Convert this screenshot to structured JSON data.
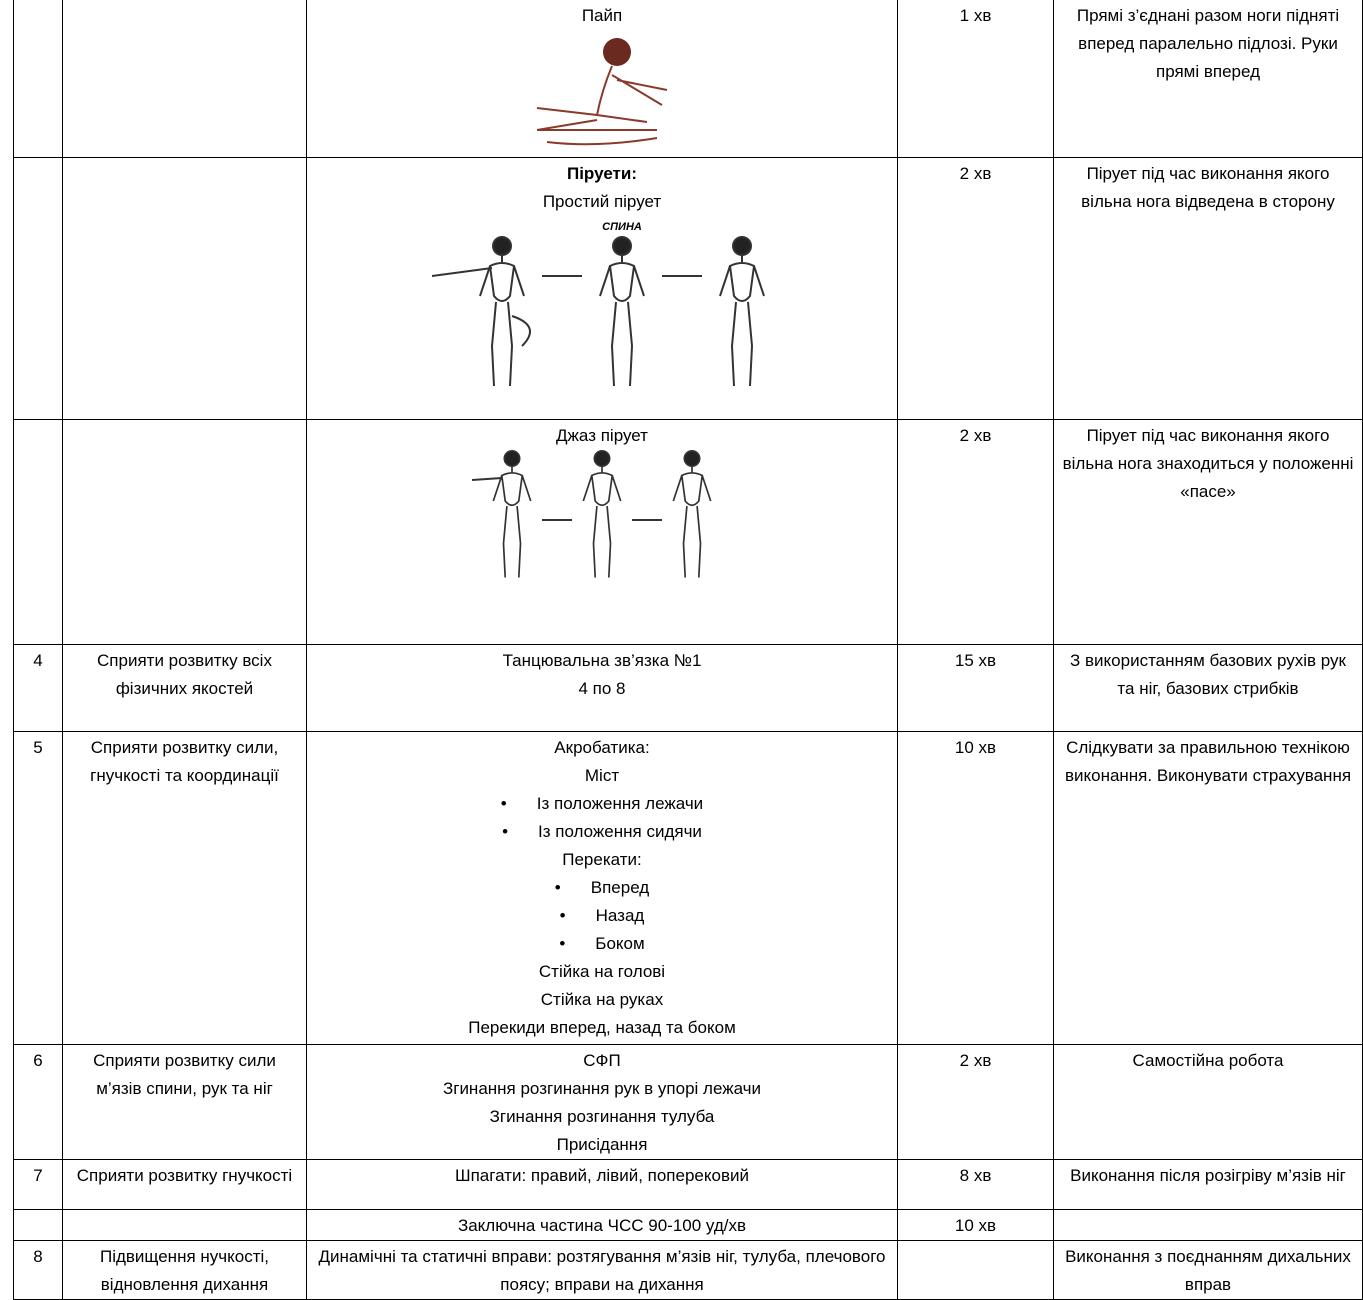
{
  "table": {
    "rows": [
      {
        "content": [
          "Пайп"
        ],
        "time": "1 хв",
        "notes": "Прямі з’єднані разом ноги підняті вперед паралельно підлозі. Руки прямі вперед"
      },
      {
        "content": [
          {
            "heading": "Піруети:"
          },
          "Простий пірует"
        ],
        "figure_label": "спина",
        "time": "2 хв",
        "notes": "Пірует під час виконання якого вільна нога відведена в сторону"
      },
      {
        "content": [
          "Джаз пірует"
        ],
        "time": "2 хв",
        "notes": "Пірует під час виконання якого вільна нога знаходиться у положенні «пасе»"
      },
      {
        "number": "4",
        "goal": "Сприяти розвитку всіх фізичних якостей",
        "content": [
          "Танцювальна зв’язка №1",
          "4 по 8"
        ],
        "time": "15 хв",
        "notes": "З використанням базових рухів рук та ніг, базових стрибків"
      },
      {
        "number": "5",
        "goal": "Сприяти розвитку сили, гнучкості та координації",
        "content": [
          "Акробатика:",
          "Міст",
          {
            "bullet": "Із положення лежачи"
          },
          {
            "bullet": "Із положення сидячи"
          },
          "Перекати:",
          {
            "bullet": "Вперед"
          },
          {
            "bullet": "Назад"
          },
          {
            "bullet": "Боком"
          },
          "Стійка на голові",
          "Стійка на руках",
          "Перекиди вперед, назад та боком"
        ],
        "time": "10 хв",
        "notes": "Слідкувати за правильною технікою виконання. Виконувати страхування"
      },
      {
        "number": "6",
        "goal": "Сприяти розвитку сили м’язів спини, рук та ніг",
        "content": [
          "СФП",
          "Згинання розгинання рук в упорі лежачи",
          "Згинання розгинання тулуба",
          "Присідання"
        ],
        "time": "2 хв",
        "notes": "Самостійна робота"
      },
      {
        "number": "7",
        "goal": "Сприяти розвитку гнучкості",
        "content": [
          "Шпагати: правий, лівий, поперековий"
        ],
        "time": "8 хв",
        "notes": "Виконання після розігріву м’язів ніг"
      },
      {
        "content": [
          "Заключна частина ЧСС 90-100 уд/хв"
        ],
        "time": "10 хв"
      },
      {
        "number": "8",
        "goal": "Підвищення нучкості, відновлення дихання",
        "content": [
          "Динамічні та статичні вправи: розтягування м’язів ніг, тулуба, плечового поясу; вправи на дихання"
        ],
        "notes": "Виконання з поєднанням дихальних вправ"
      }
    ]
  }
}
